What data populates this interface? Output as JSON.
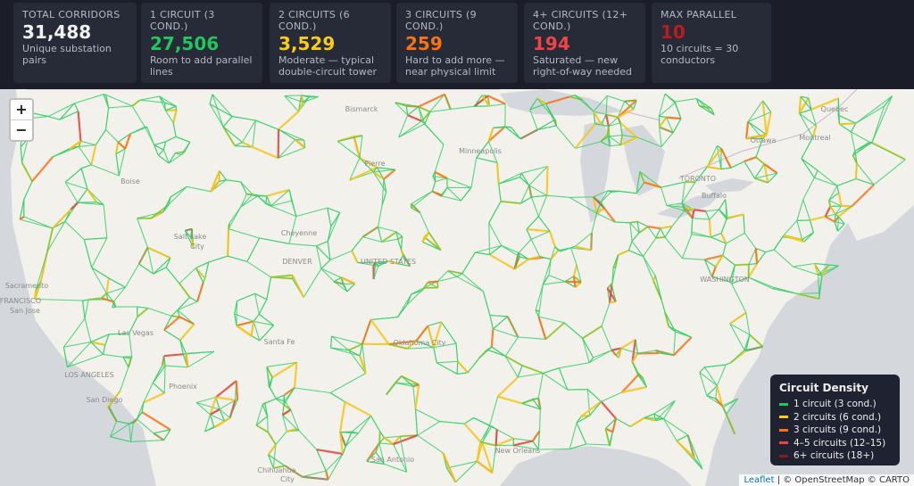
{
  "stats": [
    {
      "label": "TOTAL CORRIDORS",
      "value": "31,488",
      "note": "Unique substation pairs"
    },
    {
      "label": "1 CIRCUIT (3 COND.)",
      "value": "27,506",
      "note": "Room to add parallel lines"
    },
    {
      "label": "2 CIRCUITS (6 COND.)",
      "value": "3,529",
      "note": "Moderate — typical double-circuit tower"
    },
    {
      "label": "3 CIRCUITS (9 COND.)",
      "value": "259",
      "note": "Hard to add more — near physical limit"
    },
    {
      "label": "4+ CIRCUITS (12+ COND.)",
      "value": "194",
      "note": "Saturated — new right-of-way needed"
    },
    {
      "label": "MAX PARALLEL",
      "value": "10",
      "note": "10 circuits = 30 conductors"
    }
  ],
  "zoom": {
    "in": "+",
    "out": "−"
  },
  "map_labels": [
    "Bismarck",
    "Pierre",
    "Minneapolis",
    "Boise",
    "Salt Lake",
    "City",
    "Cheyenne",
    "DENVER",
    "UNITED STATES",
    "Sacramento",
    "SAN FRANCISCO",
    "San Jose",
    "Las Vegas",
    "LOS ANGELES",
    "San Diego",
    "Phoenix",
    "Santa Fe",
    "Oklahoma City",
    "San Antonio",
    "New Orleans",
    "Chihuahua",
    "City",
    "TORONTO",
    "Buffalo",
    "Ottawa",
    "Montreal",
    "Quebec",
    "WASHINGTON"
  ],
  "legend": {
    "title": "Circuit Density",
    "items": [
      "1 circuit (3 cond.)",
      "2 circuits (6 cond.)",
      "3 circuits (9 cond.)",
      "4–5 circuits (12–15)",
      "6+ circuits (18+)"
    ]
  },
  "attribution": {
    "leaflet": "Leaflet",
    "rest": "| © OpenStreetMap © CARTO"
  }
}
